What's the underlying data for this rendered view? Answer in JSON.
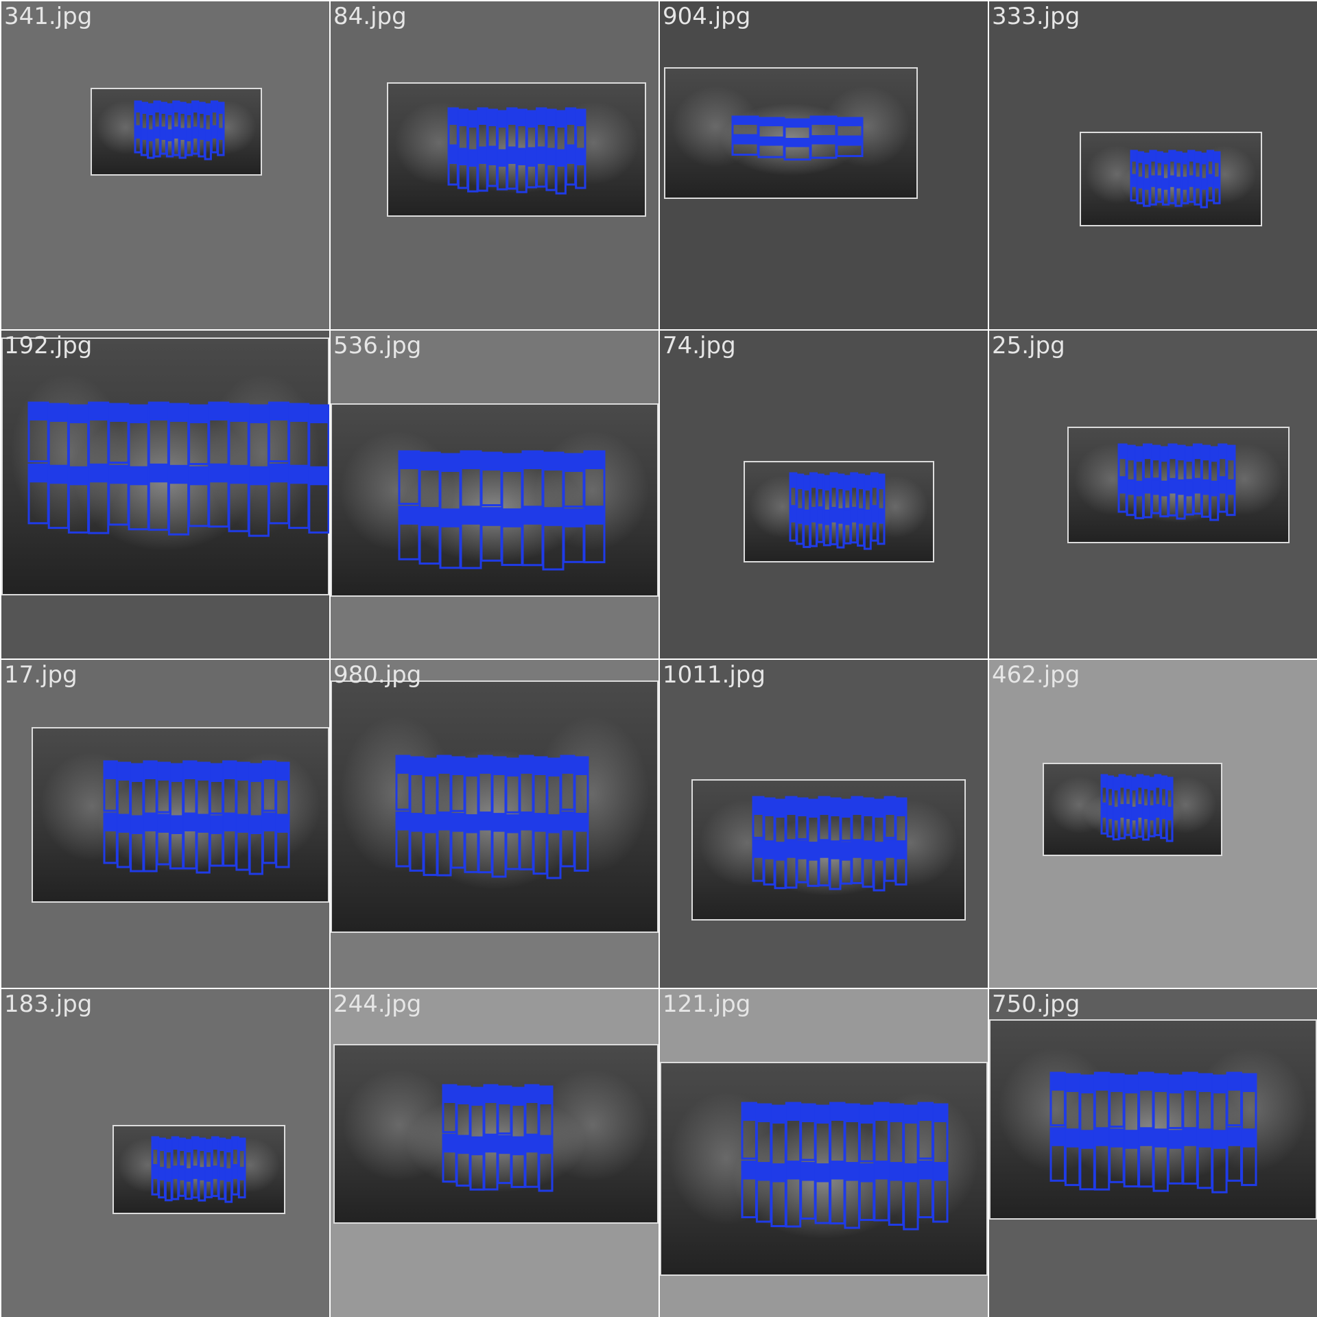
{
  "accent_color": "#1f3be8",
  "tiles": [
    {
      "filename": "341.jpg",
      "bg": "#6e6e6e",
      "xray_color": "#3b3b3b",
      "detection_count": 28
    },
    {
      "filename": "84.jpg",
      "bg": "#666666",
      "xray_color": "#3d3d3d",
      "detection_count": 28
    },
    {
      "filename": "904.jpg",
      "bg": "#4a4a4a",
      "xray_color": "#333333",
      "detection_count": 10
    },
    {
      "filename": "333.jpg",
      "bg": "#4e4e4e",
      "xray_color": "#333333",
      "detection_count": 28
    },
    {
      "filename": "192.jpg",
      "bg": "#555555",
      "xray_color": "#3a3a3a",
      "detection_count": 30
    },
    {
      "filename": "536.jpg",
      "bg": "#777777",
      "xray_color": "#4a4a4a",
      "detection_count": 20
    },
    {
      "filename": "74.jpg",
      "bg": "#4e4e4e",
      "xray_color": "#3a3a3a",
      "detection_count": 28
    },
    {
      "filename": "25.jpg",
      "bg": "#555555",
      "xray_color": "#3d3d3d",
      "detection_count": 28
    },
    {
      "filename": "17.jpg",
      "bg": "#6a6a6a",
      "xray_color": "#444444",
      "detection_count": 28
    },
    {
      "filename": "980.jpg",
      "bg": "#7a7a7a",
      "xray_color": "#4a4a4a",
      "detection_count": 28
    },
    {
      "filename": "1011.jpg",
      "bg": "#555555",
      "xray_color": "#444444",
      "detection_count": 28
    },
    {
      "filename": "462.jpg",
      "bg": "#999999",
      "xray_color": "#3a3a3a",
      "detection_count": 24
    },
    {
      "filename": "183.jpg",
      "bg": "#6e6e6e",
      "xray_color": "#3b3b3b",
      "detection_count": 28
    },
    {
      "filename": "244.jpg",
      "bg": "#999999",
      "xray_color": "#444444",
      "detection_count": 16
    },
    {
      "filename": "121.jpg",
      "bg": "#999999",
      "xray_color": "#444444",
      "detection_count": 28
    },
    {
      "filename": "750.jpg",
      "bg": "#5e5e5e",
      "xray_color": "#444444",
      "detection_count": 28
    }
  ]
}
